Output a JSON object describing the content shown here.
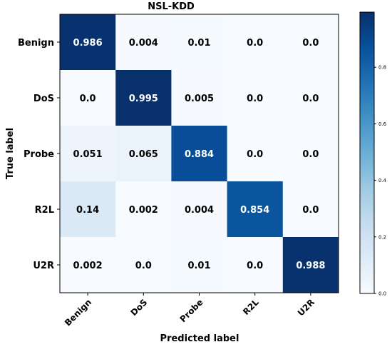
{
  "chart_data": {
    "type": "heatmap",
    "title": "NSL-KDD",
    "xlabel": "Predicted label",
    "ylabel": "True label",
    "row_labels": [
      "Benign",
      "DoS",
      "Probe",
      "R2L",
      "U2R"
    ],
    "col_labels": [
      "Benign",
      "DoS",
      "Probe",
      "R2L",
      "U2R"
    ],
    "values": [
      [
        0.986,
        0.004,
        0.01,
        0.0,
        0.0
      ],
      [
        0.0,
        0.995,
        0.005,
        0.0,
        0.0
      ],
      [
        0.051,
        0.065,
        0.884,
        0.0,
        0.0
      ],
      [
        0.14,
        0.002,
        0.004,
        0.854,
        0.0
      ],
      [
        0.002,
        0.0,
        0.01,
        0.0,
        0.988
      ]
    ],
    "cell_labels": [
      [
        "0.986",
        "0.004",
        "0.01",
        "0.0",
        "0.0"
      ],
      [
        "0.0",
        "0.995",
        "0.005",
        "0.0",
        "0.0"
      ],
      [
        "0.051",
        "0.065",
        "0.884",
        "0.0",
        "0.0"
      ],
      [
        "0.14",
        "0.002",
        "0.004",
        "0.854",
        "0.0"
      ],
      [
        "0.002",
        "0.0",
        "0.01",
        "0.0",
        "0.988"
      ]
    ],
    "colormap": "Blues",
    "colorbar": {
      "range": [
        0.0,
        0.995
      ],
      "ticks": [
        0.0,
        0.2,
        0.4,
        0.6,
        0.8
      ],
      "tick_labels": [
        "0.0",
        "0.2",
        "0.4",
        "0.6",
        "0.8"
      ]
    }
  }
}
